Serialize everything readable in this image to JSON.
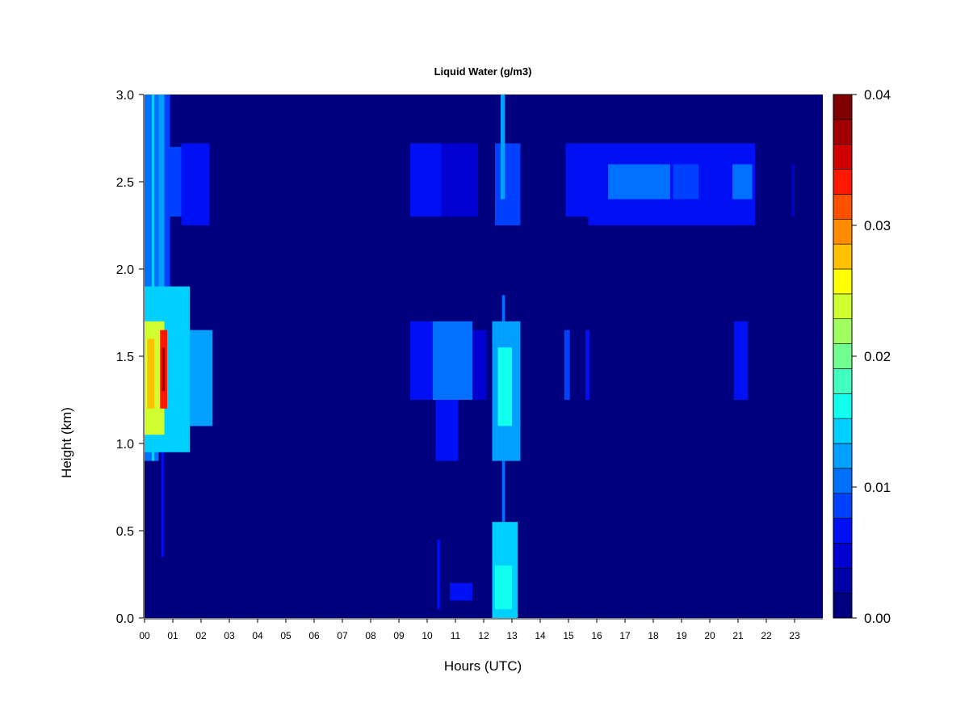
{
  "chart_data": {
    "type": "heatmap",
    "title": "Liquid Water (g/m3)",
    "xlabel": "Hours (UTC)",
    "ylabel": "Height (km)",
    "xlim": [
      0,
      24
    ],
    "ylim": [
      0,
      3.0
    ],
    "x_ticks": [
      "00",
      "01",
      "02",
      "03",
      "04",
      "05",
      "06",
      "07",
      "08",
      "09",
      "10",
      "11",
      "12",
      "13",
      "14",
      "15",
      "16",
      "17",
      "18",
      "19",
      "20",
      "21",
      "22",
      "23"
    ],
    "y_ticks": [
      "0.0",
      "0.5",
      "1.0",
      "1.5",
      "2.0",
      "2.5",
      "3.0"
    ],
    "colorbar": {
      "min": 0.0,
      "max": 0.04,
      "ticks": [
        "0.00",
        "0.01",
        "0.02",
        "0.03",
        "0.04"
      ],
      "colors": [
        "#00007f",
        "#0000a8",
        "#0000d0",
        "#0010f5",
        "#0040ff",
        "#0070ff",
        "#00a0ff",
        "#00d0ff",
        "#10ffef",
        "#40ffbf",
        "#70ff8f",
        "#a0ff5f",
        "#d0ff2f",
        "#ffff00",
        "#ffc000",
        "#ff8c00",
        "#ff5000",
        "#ff1800",
        "#d00000",
        "#a00000",
        "#7f0000"
      ]
    },
    "background_value": 0.0,
    "features": [
      {
        "x": [
          0.0,
          0.25
        ],
        "y": [
          0.9,
          3.0
        ],
        "value": 0.011
      },
      {
        "x": [
          0.25,
          0.35
        ],
        "y": [
          0.9,
          3.0
        ],
        "value": 0.014
      },
      {
        "x": [
          0.35,
          0.5
        ],
        "y": [
          0.9,
          3.0
        ],
        "value": 0.01
      },
      {
        "x": [
          0.5,
          0.7
        ],
        "y": [
          1.8,
          3.0
        ],
        "value": 0.012
      },
      {
        "x": [
          0.7,
          0.9
        ],
        "y": [
          1.8,
          3.0
        ],
        "value": 0.008
      },
      {
        "x": [
          0.9,
          1.3
        ],
        "y": [
          2.3,
          2.7
        ],
        "value": 0.009
      },
      {
        "x": [
          1.3,
          2.3
        ],
        "y": [
          2.25,
          2.72
        ],
        "value": 0.007
      },
      {
        "x": [
          0.0,
          1.6
        ],
        "y": [
          0.95,
          1.9
        ],
        "value": 0.015
      },
      {
        "x": [
          1.6,
          2.4
        ],
        "y": [
          1.1,
          1.65
        ],
        "value": 0.012
      },
      {
        "x": [
          0.0,
          0.7
        ],
        "y": [
          1.05,
          1.7
        ],
        "value": 0.024
      },
      {
        "x": [
          0.1,
          0.35
        ],
        "y": [
          1.2,
          1.6
        ],
        "value": 0.028
      },
      {
        "x": [
          0.55,
          0.8
        ],
        "y": [
          1.2,
          1.65
        ],
        "value": 0.034
      },
      {
        "x": [
          0.62,
          0.72
        ],
        "y": [
          1.3,
          1.55
        ],
        "value": 0.037
      },
      {
        "x": [
          0.6,
          0.68
        ],
        "y": [
          0.35,
          0.95
        ],
        "value": 0.006
      },
      {
        "x": [
          9.4,
          10.5
        ],
        "y": [
          2.3,
          2.72
        ],
        "value": 0.006
      },
      {
        "x": [
          10.5,
          11.8
        ],
        "y": [
          2.3,
          2.72
        ],
        "value": 0.005
      },
      {
        "x": [
          12.4,
          13.3
        ],
        "y": [
          2.25,
          2.72
        ],
        "value": 0.009
      },
      {
        "x": [
          12.6,
          12.75
        ],
        "y": [
          2.4,
          3.0
        ],
        "value": 0.012
      },
      {
        "x": [
          9.4,
          10.2
        ],
        "y": [
          1.25,
          1.7
        ],
        "value": 0.007
      },
      {
        "x": [
          10.2,
          11.6
        ],
        "y": [
          1.25,
          1.7
        ],
        "value": 0.01
      },
      {
        "x": [
          10.3,
          11.1
        ],
        "y": [
          0.9,
          1.25
        ],
        "value": 0.006
      },
      {
        "x": [
          11.6,
          12.1
        ],
        "y": [
          1.25,
          1.65
        ],
        "value": 0.005
      },
      {
        "x": [
          12.3,
          13.3
        ],
        "y": [
          0.9,
          1.7
        ],
        "value": 0.013
      },
      {
        "x": [
          12.5,
          13.0
        ],
        "y": [
          1.1,
          1.55
        ],
        "value": 0.016
      },
      {
        "x": [
          12.65,
          12.75
        ],
        "y": [
          0.5,
          1.85
        ],
        "value": 0.011
      },
      {
        "x": [
          12.3,
          13.2
        ],
        "y": [
          0.0,
          0.55
        ],
        "value": 0.014
      },
      {
        "x": [
          12.4,
          13.0
        ],
        "y": [
          0.05,
          0.3
        ],
        "value": 0.017
      },
      {
        "x": [
          10.8,
          11.6
        ],
        "y": [
          0.1,
          0.2
        ],
        "value": 0.007
      },
      {
        "x": [
          10.35,
          10.45
        ],
        "y": [
          0.05,
          0.45
        ],
        "value": 0.006
      },
      {
        "x": [
          14.85,
          15.05
        ],
        "y": [
          1.25,
          1.65
        ],
        "value": 0.008
      },
      {
        "x": [
          15.6,
          15.75
        ],
        "y": [
          1.25,
          1.65
        ],
        "value": 0.007
      },
      {
        "x": [
          14.9,
          15.7
        ],
        "y": [
          2.3,
          2.72
        ],
        "value": 0.006
      },
      {
        "x": [
          15.7,
          21.6
        ],
        "y": [
          2.25,
          2.72
        ],
        "value": 0.007
      },
      {
        "x": [
          16.4,
          18.6
        ],
        "y": [
          2.4,
          2.6
        ],
        "value": 0.01
      },
      {
        "x": [
          18.7,
          19.6
        ],
        "y": [
          2.4,
          2.6
        ],
        "value": 0.009
      },
      {
        "x": [
          20.8,
          21.5
        ],
        "y": [
          2.4,
          2.6
        ],
        "value": 0.01
      },
      {
        "x": [
          20.85,
          21.35
        ],
        "y": [
          1.25,
          1.7
        ],
        "value": 0.007
      },
      {
        "x": [
          22.9,
          23.0
        ],
        "y": [
          2.3,
          2.6
        ],
        "value": 0.005
      }
    ]
  }
}
